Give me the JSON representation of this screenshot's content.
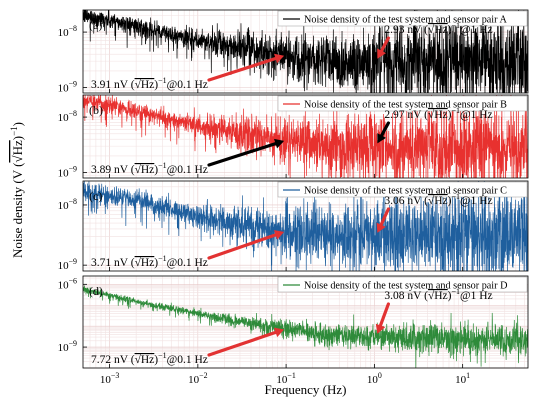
{
  "chart_data": {
    "type": "line",
    "xlabel": "Frequency (Hz)",
    "ylabel_main": "Noise density (V (",
    "ylabel_sqrt": "√Hz",
    "ylabel_tail": ")",
    "ylabel_exp": "−1",
    "x_scale": "log",
    "y_scale": "log",
    "xlim": [
      0.0005,
      55
    ],
    "x_ticks": [
      {
        "value": 0.001,
        "base": "10",
        "exp": "−3"
      },
      {
        "value": 0.01,
        "base": "10",
        "exp": "−2"
      },
      {
        "value": 0.1,
        "base": "10",
        "exp": "−1"
      },
      {
        "value": 1,
        "base": "10",
        "exp": "0"
      },
      {
        "value": 10,
        "base": "10",
        "exp": "1"
      }
    ],
    "grid": true,
    "legend_position": "top-right",
    "panels": [
      {
        "id": "A",
        "label": "(a)",
        "legend": "Noise density of the test system and sensor pair A",
        "color": "#000000",
        "ylim": [
          8e-10,
          2.5e-08
        ],
        "y_ticks": [
          {
            "value": 1e-08,
            "base": "10",
            "exp": "−8"
          },
          {
            "value": 1e-09,
            "base": "10",
            "exp": "−9"
          }
        ],
        "trend_x": [
          0.0005,
          0.002,
          0.01,
          0.05,
          0.1,
          0.3,
          1,
          3,
          10,
          55
        ],
        "trend_y": [
          2e-08,
          1.3e-08,
          7e-09,
          4.5e-09,
          3.91e-09,
          3.2e-09,
          2.93e-09,
          2.9e-09,
          2.9e-09,
          2.9e-09
        ],
        "annotations": [
          {
            "prefix": "3.91",
            "unit": "nV (",
            "sqrt": "√Hz",
            "post": ")",
            "exp": "−1",
            "tail": "@0.1 Hz",
            "x": 0.1,
            "y": 3.91e-09,
            "arrow_color": "#e23232"
          },
          {
            "prefix": "2.93",
            "unit": "nV (",
            "sqrt": "√Hz",
            "post": ")",
            "exp": "−1",
            "tail": "@1 Hz",
            "x": 1,
            "y": 2.93e-09,
            "arrow_color": "#e23232"
          }
        ]
      },
      {
        "id": "B",
        "label": "(b)",
        "legend": "Noise density of the test system and sensor pair B",
        "color": "#e8312f",
        "ylim": [
          8e-10,
          2.5e-08
        ],
        "y_ticks": [
          {
            "value": 1e-08,
            "base": "10",
            "exp": "−8"
          },
          {
            "value": 1e-09,
            "base": "10",
            "exp": "−9"
          }
        ],
        "trend_x": [
          0.0005,
          0.002,
          0.01,
          0.05,
          0.1,
          0.3,
          1,
          3,
          10,
          55
        ],
        "trend_y": [
          2e-08,
          1.3e-08,
          7e-09,
          4.5e-09,
          3.89e-09,
          3.2e-09,
          2.97e-09,
          2.9e-09,
          2.9e-09,
          2.9e-09
        ],
        "annotations": [
          {
            "prefix": "3.89",
            "unit": "nV (",
            "sqrt": "√Hz",
            "post": ")",
            "exp": "−1",
            "tail": "@0.1 Hz",
            "x": 0.1,
            "y": 3.89e-09,
            "arrow_color": "#000000"
          },
          {
            "prefix": "2.97",
            "unit": "nV (",
            "sqrt": "√Hz",
            "post": ")",
            "exp": "−1",
            "tail": "@1 Hz",
            "x": 1,
            "y": 2.97e-09,
            "arrow_color": "#000000"
          }
        ]
      },
      {
        "id": "C",
        "label": "(c)",
        "legend": "Noise density of the test system and sensor pair C",
        "color": "#1f5f9e",
        "ylim": [
          8e-10,
          2.5e-08
        ],
        "y_ticks": [
          {
            "value": 1e-08,
            "base": "10",
            "exp": "−8"
          },
          {
            "value": 1e-09,
            "base": "10",
            "exp": "−9"
          }
        ],
        "trend_x": [
          0.0005,
          0.002,
          0.01,
          0.05,
          0.1,
          0.3,
          1,
          3,
          10,
          55
        ],
        "trend_y": [
          1.8e-08,
          1.2e-08,
          6.5e-09,
          4.3e-09,
          3.71e-09,
          3.2e-09,
          3.06e-09,
          3e-09,
          3e-09,
          3e-09
        ],
        "annotations": [
          {
            "prefix": "3.71",
            "unit": "nV (",
            "sqrt": "√Hz",
            "post": ")",
            "exp": "−1",
            "tail": "@0.1 Hz",
            "x": 0.1,
            "y": 3.71e-09,
            "arrow_color": "#e23232"
          },
          {
            "prefix": "3.06",
            "unit": "nV (",
            "sqrt": "√Hz",
            "post": ")",
            "exp": "−1",
            "tail": "@1 Hz",
            "x": 1,
            "y": 3.06e-09,
            "arrow_color": "#e23232"
          }
        ]
      },
      {
        "id": "D",
        "label": "(d)",
        "legend": "Noise density of the test system and sensor pair D",
        "color": "#2e8b3a",
        "ylim": [
          1e-10,
          2.5e-06
        ],
        "y_ticks": [
          {
            "value": 1e-06,
            "base": "10",
            "exp": "−6"
          },
          {
            "value": 1e-09,
            "base": "10",
            "exp": "−9"
          }
        ],
        "trend_x": [
          0.0005,
          0.002,
          0.01,
          0.05,
          0.1,
          0.3,
          1,
          3,
          10,
          55
        ],
        "trend_y": [
          6e-07,
          1.5e-07,
          4e-08,
          1.2e-08,
          7.72e-09,
          4e-09,
          3.08e-09,
          2.6e-09,
          2.4e-09,
          2.3e-09
        ],
        "annotations": [
          {
            "prefix": "7.72",
            "unit": "nV (",
            "sqrt": "√Hz",
            "post": ")",
            "exp": "−1",
            "tail": "@0.1 Hz",
            "x": 0.1,
            "y": 7.72e-09,
            "arrow_color": "#e23232"
          },
          {
            "prefix": "3.08",
            "unit": "nV (",
            "sqrt": "√Hz",
            "post": ")",
            "exp": "−1",
            "tail": "@1 Hz",
            "x": 1,
            "y": 3.08e-09,
            "arrow_color": "#e23232"
          }
        ]
      }
    ]
  }
}
